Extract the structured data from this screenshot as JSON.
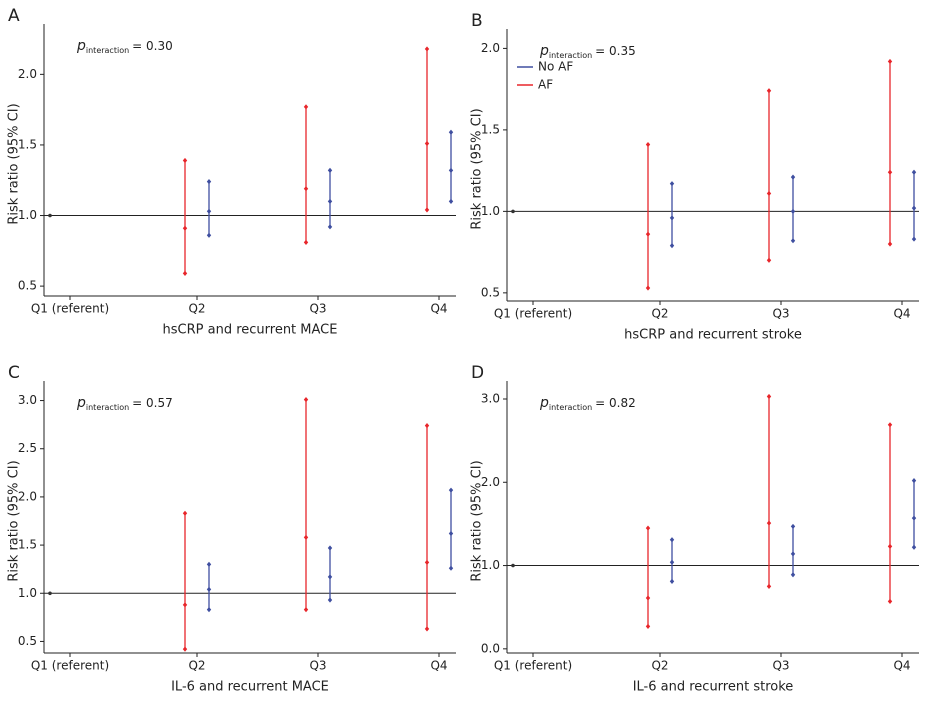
{
  "chart_data": [
    {
      "type": "errorbar",
      "label": "A",
      "annotation": {
        "symbol": "p",
        "subscript": "interaction",
        "text": "= 0.30"
      },
      "x_label": "hsCRP and recurrent MACE",
      "y_label": "Risk ratio (95% CI)",
      "categories": [
        "Q1 (referent)",
        "Q2",
        "Q3",
        "Q4"
      ],
      "referent_value": 1,
      "series": [
        {
          "name": "No AF",
          "color": "#3f4fa0",
          "values": [
            null,
            1.03,
            1.1,
            1.32
          ],
          "lower": [
            null,
            0.86,
            0.92,
            1.1
          ],
          "upper": [
            null,
            1.24,
            1.32,
            1.59
          ]
        },
        {
          "name": "AF",
          "color": "#e8262b",
          "values": [
            null,
            0.91,
            1.19,
            1.51
          ],
          "lower": [
            null,
            0.59,
            0.81,
            1.04
          ],
          "upper": [
            null,
            1.39,
            1.77,
            2.18
          ]
        }
      ],
      "ylim": [
        0.43,
        2.3
      ],
      "yticks": [
        0.5,
        {
          "value": 1,
          "label": "1.0"
        },
        1.5,
        {
          "value": 2,
          "label": "2.0"
        }
      ],
      "legend": false
    },
    {
      "type": "errorbar",
      "label": "B",
      "annotation": {
        "symbol": "p",
        "subscript": "interaction",
        "text": "= 0.35"
      },
      "x_label": "hsCRP and recurrent stroke",
      "y_label": "Risk ratio (95% CI)",
      "categories": [
        "Q1 (referent)",
        "Q2",
        "Q3",
        "Q4"
      ],
      "referent_value": 1,
      "series": [
        {
          "name": "No AF",
          "color": "#3f4fa0",
          "values": [
            null,
            0.96,
            1.0,
            1.02
          ],
          "lower": [
            null,
            0.79,
            0.82,
            0.83
          ],
          "upper": [
            null,
            1.17,
            1.21,
            1.24
          ]
        },
        {
          "name": "AF",
          "color": "#e8262b",
          "values": [
            null,
            0.86,
            1.11,
            1.24
          ],
          "lower": [
            null,
            0.53,
            0.7,
            0.8
          ],
          "upper": [
            null,
            1.41,
            1.74,
            1.92
          ]
        }
      ],
      "ylim": [
        0.45,
        2.07
      ],
      "yticks": [
        0.5,
        {
          "value": 1,
          "label": "1.0"
        },
        1.5,
        {
          "value": 2,
          "label": "2.0"
        }
      ],
      "legend": true
    },
    {
      "type": "errorbar",
      "label": "C",
      "annotation": {
        "symbol": "p",
        "subscript": "interaction",
        "text": "= 0.57"
      },
      "x_label": "IL-6 and recurrent MACE",
      "y_label": "Risk ratio (95% CI)",
      "categories": [
        "Q1 (referent)",
        "Q2",
        "Q3",
        "Q4"
      ],
      "referent_value": 1,
      "series": [
        {
          "name": "No AF",
          "color": "#3f4fa0",
          "values": [
            null,
            1.04,
            1.17,
            1.62
          ],
          "lower": [
            null,
            0.83,
            0.93,
            1.26
          ],
          "upper": [
            null,
            1.3,
            1.47,
            2.07
          ]
        },
        {
          "name": "AF",
          "color": "#e8262b",
          "values": [
            null,
            0.88,
            1.58,
            1.32
          ],
          "lower": [
            null,
            0.42,
            0.83,
            0.63
          ],
          "upper": [
            null,
            1.83,
            3.01,
            2.74
          ]
        }
      ],
      "ylim": [
        0.38,
        3.12
      ],
      "yticks": [
        0.5,
        {
          "value": 1,
          "label": "1.0"
        },
        1.5,
        {
          "value": 2,
          "label": "2.0"
        },
        2.5,
        {
          "value": 3,
          "label": "3.0"
        }
      ],
      "legend": false
    },
    {
      "type": "errorbar",
      "label": "D",
      "annotation": {
        "symbol": "p",
        "subscript": "interaction",
        "text": "= 0.82"
      },
      "x_label": "IL-6 and recurrent stroke",
      "y_label": "Risk ratio (95% CI)",
      "categories": [
        "Q1 (referent)",
        "Q2",
        "Q3",
        "Q4"
      ],
      "referent_value": 1,
      "series": [
        {
          "name": "No AF",
          "color": "#3f4fa0",
          "values": [
            null,
            1.04,
            1.14,
            1.57
          ],
          "lower": [
            null,
            0.81,
            0.89,
            1.22
          ],
          "upper": [
            null,
            1.31,
            1.47,
            2.02
          ]
        },
        {
          "name": "AF",
          "color": "#e8262b",
          "values": [
            null,
            0.61,
            1.51,
            1.23
          ],
          "lower": [
            null,
            0.27,
            0.75,
            0.57
          ],
          "upper": [
            null,
            1.45,
            3.03,
            2.69
          ]
        }
      ],
      "ylim": [
        -0.05,
        3.12
      ],
      "yticks": [
        {
          "value": 0,
          "label": "0.0"
        },
        {
          "value": 1,
          "label": "1.0"
        },
        {
          "value": 2,
          "label": "2.0"
        },
        {
          "value": 3,
          "label": "3.0"
        }
      ],
      "legend": false
    }
  ]
}
